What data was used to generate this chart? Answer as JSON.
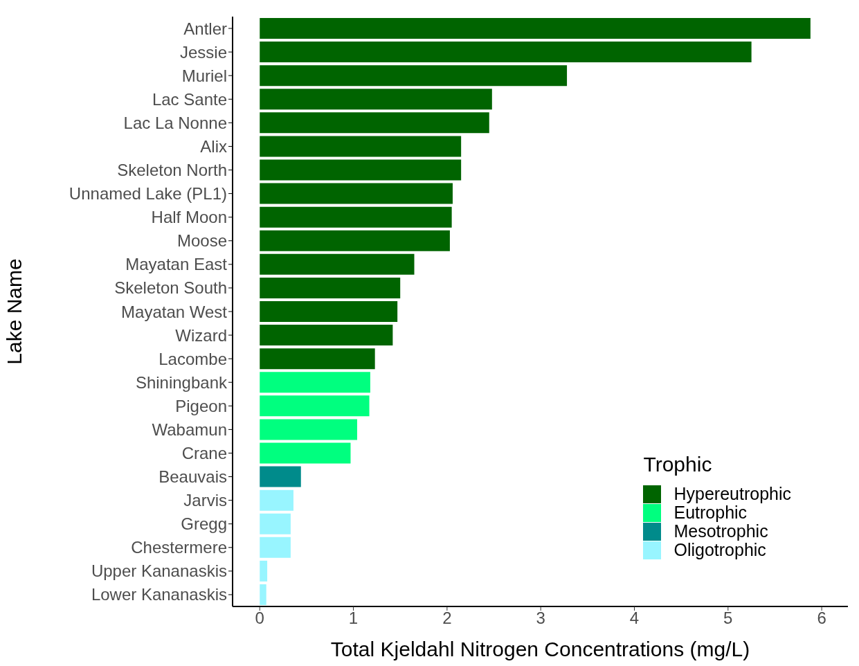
{
  "chart_data": {
    "type": "bar",
    "orientation": "horizontal",
    "stacked": true,
    "xlabel": "Total Kjeldahl Nitrogen Concentrations (mg/L)",
    "ylabel": "Lake Name",
    "legend_title": "Trophic",
    "categories": [
      "Antler",
      "Jessie",
      "Muriel",
      "Lac Sante",
      "Lac La Nonne",
      "Alix",
      "Skeleton North",
      "Unnamed Lake (PL1)",
      "Half Moon",
      "Moose",
      "Mayatan East",
      "Skeleton South",
      "Mayatan West",
      "Wizard",
      "Lacombe",
      "Shiningbank",
      "Pigeon",
      "Wabamun",
      "Crane",
      "Beauvais",
      "Jarvis",
      "Gregg",
      "Chestermere",
      "Upper Kananaskis",
      "Lower Kananaskis"
    ],
    "series": [
      {
        "name": "Hypereutrophic",
        "color": "#006400",
        "values": [
          5.88,
          5.25,
          3.28,
          2.48,
          2.45,
          2.15,
          2.15,
          2.06,
          2.05,
          2.03,
          1.65,
          1.5,
          1.47,
          1.42,
          1.23,
          null,
          null,
          null,
          null,
          null,
          null,
          null,
          null,
          null,
          null
        ]
      },
      {
        "name": "Eutrophic",
        "color": "#00ff7f",
        "values": [
          null,
          null,
          null,
          null,
          null,
          null,
          null,
          null,
          null,
          null,
          null,
          null,
          null,
          null,
          null,
          1.18,
          1.17,
          1.04,
          0.97,
          null,
          null,
          null,
          null,
          null,
          null
        ]
      },
      {
        "name": "Mesotrophic",
        "color": "#008b8b",
        "values": [
          null,
          null,
          null,
          null,
          null,
          null,
          null,
          null,
          null,
          null,
          null,
          null,
          null,
          null,
          null,
          null,
          null,
          null,
          null,
          0.44,
          null,
          null,
          null,
          null,
          null
        ]
      },
      {
        "name": "Oligotrophic",
        "color": "#98f5ff",
        "values": [
          null,
          null,
          null,
          null,
          null,
          null,
          null,
          null,
          null,
          null,
          null,
          null,
          null,
          null,
          null,
          null,
          null,
          null,
          null,
          null,
          0.36,
          0.33,
          0.33,
          0.08,
          0.07
        ]
      }
    ],
    "xlim": [
      -0.29,
      6.28
    ],
    "xticks": [
      0,
      1,
      2,
      3,
      4,
      5,
      6
    ],
    "grid": false,
    "legend": "bottom right"
  }
}
